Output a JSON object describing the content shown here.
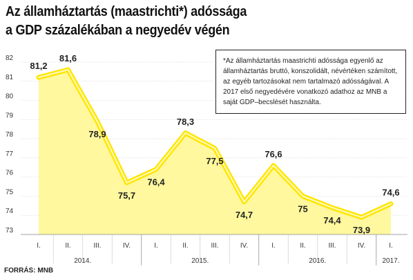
{
  "title_line1": "Az államháztartás (maastrichti*) adóssága",
  "title_line2": "a GDP százalékában a negyedév végén",
  "note": "*Az államháztartás maastrichti adóssága egyenlő az államháztartás bruttó, konszolidált, névértéken számított, az egyéb tartozásokat nem tartalmazó adósságával. A 2017 első negyedévére vonatkozó adathoz az MNB a saját GDP–becslését használta.",
  "source": "FORRÁS: MNB",
  "colors": {
    "line": "#ffe600",
    "area": "#fff89e",
    "stroke_light": "#fffac8",
    "grid": "#cfcfcf"
  },
  "chart_data": {
    "type": "area",
    "categories": [
      "I.",
      "II.",
      "III.",
      "IV.",
      "I.",
      "II.",
      "III.",
      "IV.",
      "I.",
      "II.",
      "III.",
      "IV.",
      "I."
    ],
    "values": [
      81.2,
      81.6,
      78.9,
      75.7,
      76.4,
      78.3,
      77.5,
      74.7,
      76.6,
      75,
      74.4,
      73.9,
      74.6
    ],
    "value_labels": [
      "81,2",
      "81,6",
      "78,9",
      "75,7",
      "76,4",
      "78,3",
      "77,5",
      "74,7",
      "76,6",
      "75",
      "74,4",
      "73,9",
      "74,6"
    ],
    "years": [
      {
        "label": "2014.",
        "start": 0,
        "end": 3
      },
      {
        "label": "2015.",
        "start": 4,
        "end": 7
      },
      {
        "label": "2016.",
        "start": 8,
        "end": 11
      },
      {
        "label": "2017.",
        "start": 12,
        "end": 12
      }
    ],
    "y_ticks": [
      73,
      74,
      75,
      76,
      77,
      78,
      79,
      80,
      81,
      82
    ],
    "ylim": [
      73,
      82
    ],
    "grid": true
  }
}
